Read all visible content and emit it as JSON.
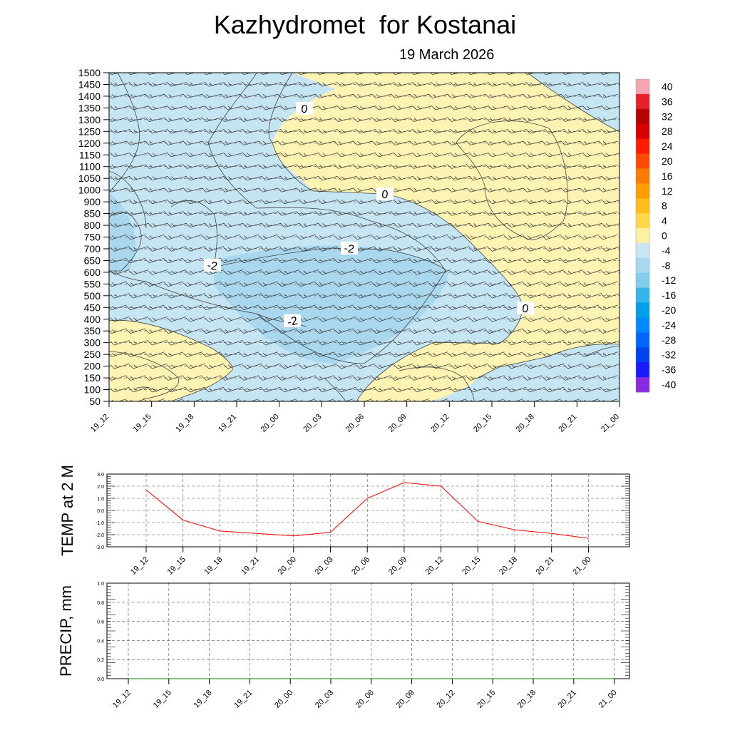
{
  "title": "Kazhydromet  for Kostanai",
  "subtitle": "19 March 2026",
  "time_labels": [
    "19_12",
    "19_15",
    "19_18",
    "19_21",
    "20_00",
    "20_03",
    "20_06",
    "20_09",
    "20_12",
    "20_15",
    "20_18",
    "20_21",
    "21_00"
  ],
  "colors": {
    "cold": "#c6e5f3",
    "cold_deep": "#a9d8ee",
    "warm": "#fdf4b3",
    "line_temp": "#ff0000",
    "line_precip": "#008000",
    "contour": "#444444"
  },
  "chart_data": [
    {
      "type": "heatmap",
      "name": "cross-section",
      "description_units": "temperature contours (degC) with wind barbs",
      "y_levels": [
        50,
        100,
        150,
        200,
        250,
        300,
        350,
        400,
        450,
        500,
        550,
        600,
        650,
        700,
        750,
        800,
        850,
        900,
        1000,
        1050,
        1100,
        1150,
        1200,
        1250,
        1300,
        1350,
        1400,
        1450,
        1500
      ],
      "x": [
        "19_12",
        "19_15",
        "19_18",
        "19_21",
        "20_00",
        "20_03",
        "20_06",
        "20_09",
        "20_12",
        "20_15",
        "20_18",
        "20_21",
        "21_00"
      ],
      "contour_labels": [
        "0",
        "0",
        "-2",
        "-2",
        "-2",
        "0"
      ],
      "colorbar": {
        "levels": [
          40,
          36,
          32,
          28,
          24,
          20,
          16,
          12,
          8,
          4,
          0,
          -4,
          -8,
          -12,
          -16,
          -20,
          -24,
          -28,
          -32,
          -36,
          -40
        ],
        "colors": [
          "#f6a6b0",
          "#e8202a",
          "#b80000",
          "#d80000",
          "#ff1a00",
          "#ff4a00",
          "#ff7a00",
          "#ff9e00",
          "#ffbe1a",
          "#ffd84a",
          "#fdf0a0",
          "#c8e6f4",
          "#a6d8ef",
          "#82ccec",
          "#33b5ea",
          "#00a0e8",
          "#0088ff",
          "#0066ff",
          "#0044f0",
          "#1a1aff",
          "#8a2be2"
        ]
      }
    },
    {
      "type": "line",
      "name": "temp",
      "ylabel": "TEMP at 2 M",
      "ylim": [
        -3.0,
        3.0
      ],
      "yticks": [
        "3.0",
        "2.0",
        "1.0",
        "0.0",
        "-1.0",
        "-2.0",
        "-3.0"
      ],
      "x": [
        "19_12",
        "19_15",
        "19_18",
        "19_21",
        "20_00",
        "20_03",
        "20_06",
        "20_09",
        "20_12",
        "20_15",
        "20_18",
        "20_21",
        "21_00"
      ],
      "values": [
        1.7,
        -0.8,
        -1.7,
        -1.9,
        -2.1,
        -1.8,
        1.0,
        2.3,
        2.0,
        -0.9,
        -1.6,
        -1.9,
        -2.3
      ]
    },
    {
      "type": "line",
      "name": "precip",
      "ylabel": "PRECIP, mm",
      "ylim": [
        0.0,
        1.0
      ],
      "yticks": [
        "1.0",
        "0.8",
        "0.6",
        "0.4",
        "0.2",
        "0.0"
      ],
      "x": [
        "19_12",
        "19_15",
        "19_18",
        "19_21",
        "20_00",
        "20_03",
        "20_06",
        "20_09",
        "20_12",
        "20_15",
        "20_18",
        "20_21",
        "21_00"
      ],
      "values": [
        0,
        0,
        0,
        0,
        0,
        0,
        0,
        0,
        0,
        0,
        0,
        0,
        0
      ]
    }
  ]
}
